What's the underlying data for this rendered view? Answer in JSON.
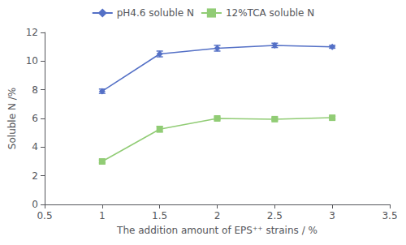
{
  "chart_data": {
    "type": "line",
    "xlabel": "The addition amount of EPS⁺⁺ strains / %",
    "ylabel": "Soluble N /%",
    "x": [
      1,
      1.5,
      2,
      2.5,
      3
    ],
    "series": [
      {
        "name": "pH4.6 soluble N",
        "values": [
          7.9,
          10.5,
          10.9,
          11.1,
          11.0
        ],
        "yerr": [
          0.15,
          0.2,
          0.2,
          0.15,
          0.1
        ],
        "marker": "diamond"
      },
      {
        "name": "12%TCA soluble N",
        "values": [
          3.0,
          5.25,
          6.0,
          5.95,
          6.05
        ],
        "yerr": [
          0.1,
          0.2,
          0.1,
          0.1,
          0.1
        ],
        "marker": "square"
      }
    ],
    "xlim": [
      0.5,
      3.5
    ],
    "xticks": [
      0.5,
      1,
      1.5,
      2,
      2.5,
      3,
      3.5
    ],
    "ylim": [
      0,
      12
    ],
    "yticks": [
      0,
      2,
      4,
      6,
      8,
      10,
      12
    ],
    "grid": false,
    "legend": "top"
  }
}
